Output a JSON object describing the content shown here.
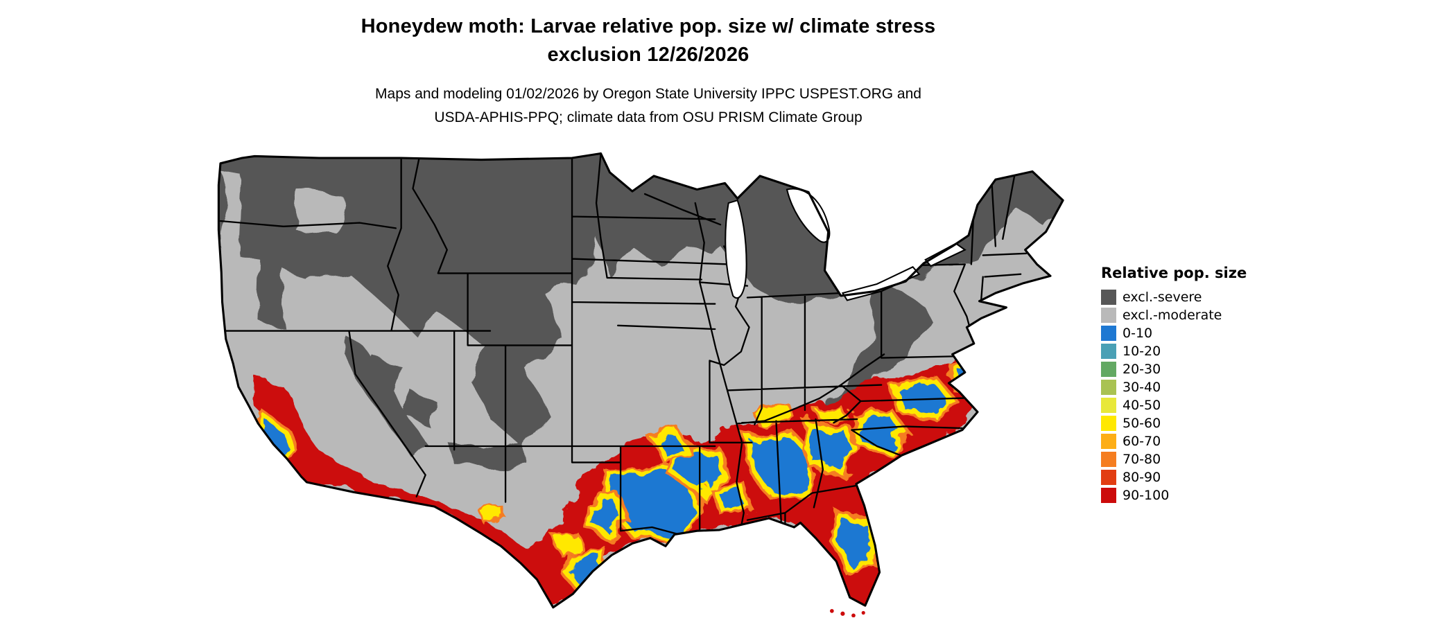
{
  "title": {
    "line1": "Honeydew moth: Larvae relative pop. size w/ climate stress",
    "line2": "exclusion 12/26/2026"
  },
  "subtitle": {
    "line1": "Maps and modeling 01/02/2026 by Oregon State University IPPC USPEST.ORG and",
    "line2": "USDA-APHIS-PPQ; climate data from OSU PRISM Climate Group"
  },
  "legend": {
    "title": "Relative pop. size",
    "items": [
      {
        "label": "excl.-severe",
        "color": "#575757"
      },
      {
        "label": "excl.-moderate",
        "color": "#b9b9b9"
      },
      {
        "label": "0-10",
        "color": "#1e78d2"
      },
      {
        "label": "10-20",
        "color": "#4aa0b5"
      },
      {
        "label": "20-30",
        "color": "#63a963"
      },
      {
        "label": "30-40",
        "color": "#a9c252"
      },
      {
        "label": "40-50",
        "color": "#e8e83a"
      },
      {
        "label": "50-60",
        "color": "#ffe800"
      },
      {
        "label": "60-70",
        "color": "#fdae16"
      },
      {
        "label": "70-80",
        "color": "#f57d20"
      },
      {
        "label": "80-90",
        "color": "#e23d12"
      },
      {
        "label": "90-100",
        "color": "#cc0b0b"
      }
    ]
  },
  "map": {
    "region": "Continental United States",
    "colors": {
      "background": "#ffffff",
      "excl_severe": "#575757",
      "excl_moderate": "#b9b9b9",
      "high": "#cc0b0b",
      "low": "#1e78d2",
      "mid": "#ffe800",
      "mid_high": "#f57d20",
      "border": "#000000",
      "water": "#ffffff"
    }
  }
}
